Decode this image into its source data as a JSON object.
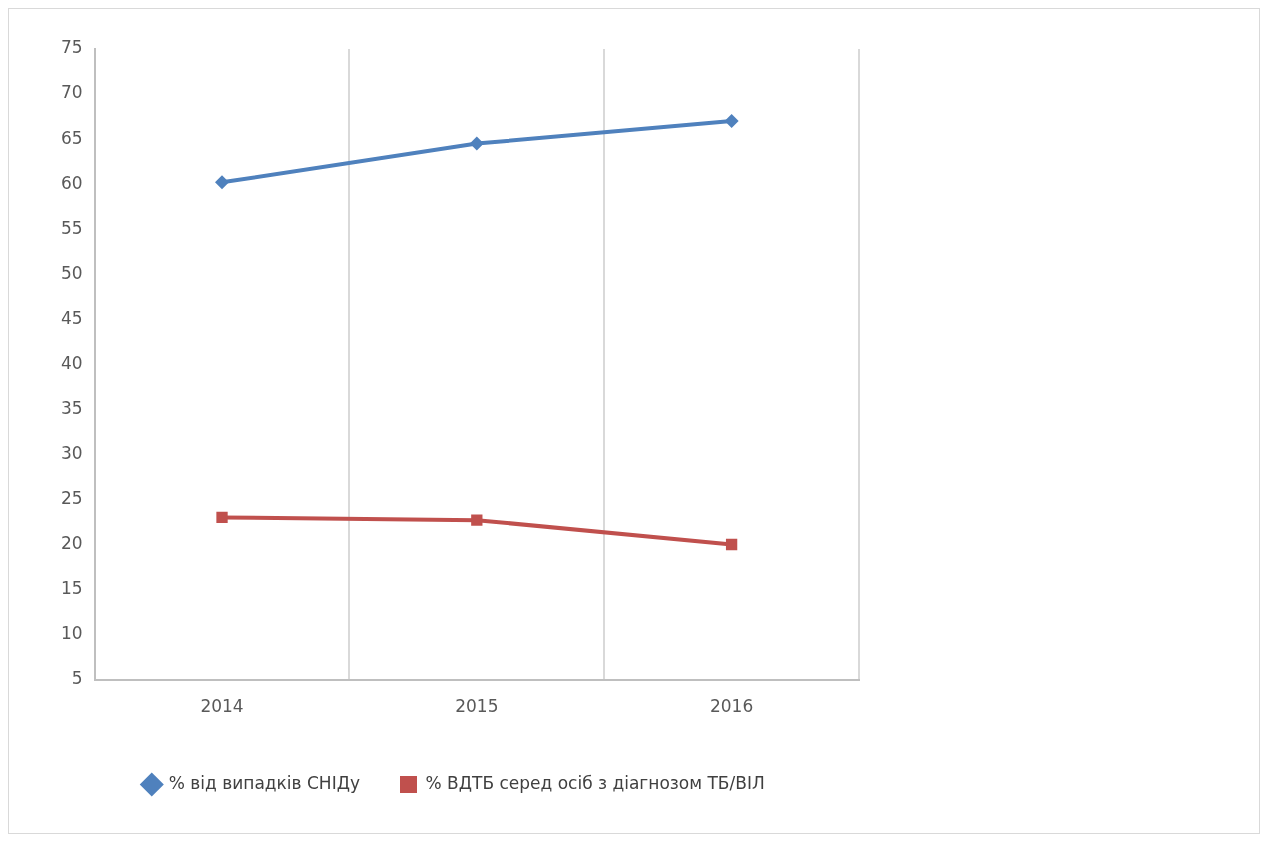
{
  "chart_data": {
    "type": "line",
    "categories": [
      "2014",
      "2015",
      "2016"
    ],
    "series": [
      {
        "name": "% від випадків СНІДу",
        "color": "#4f81bd",
        "marker": "diamond",
        "values": [
          60.2,
          64.5,
          67
        ]
      },
      {
        "name": "% ВДТБ серед осіб з діагнозом ТБ/ВІЛ",
        "color": "#c0504d",
        "marker": "square",
        "values": [
          23,
          22.7,
          20
        ]
      }
    ],
    "ylim": [
      5,
      75
    ],
    "yticks": [
      5,
      10,
      15,
      20,
      25,
      30,
      35,
      40,
      45,
      50,
      55,
      60,
      65,
      70,
      75
    ],
    "grid": "x",
    "legend": "bottom",
    "line_style": "solid"
  }
}
